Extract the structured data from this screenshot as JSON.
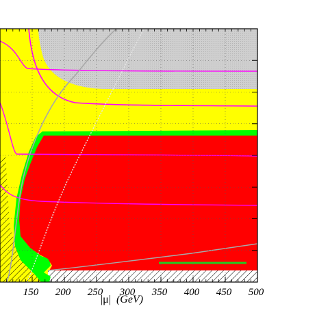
{
  "chart_data": {
    "type": "area",
    "title": "",
    "xlabel": "|μ| (GeV)",
    "xlabel_symbol": "|μ|",
    "xlabel_unit": "(GeV)",
    "ylabel": "",
    "xlim": [
      100,
      500
    ],
    "x_ticks": [
      150,
      200,
      250,
      300,
      350,
      400,
      450,
      500
    ],
    "grid": true,
    "colors": {
      "background_yellow": "#ffff00",
      "excluded_grey": "#c8c8c8",
      "red_region": "#ff0000",
      "green_band": "#00ff00",
      "magenta_contour": "#ff00ff",
      "boundary_grey": "#a8a8a8",
      "hatch": "#000000",
      "frame": "#000000"
    },
    "regions": [
      {
        "name": "grey",
        "description_visible": false
      },
      {
        "name": "yellow",
        "description_visible": false
      },
      {
        "name": "red",
        "description_visible": false
      },
      {
        "name": "green",
        "description_visible": false
      },
      {
        "name": "hatched",
        "description_visible": false
      }
    ]
  }
}
